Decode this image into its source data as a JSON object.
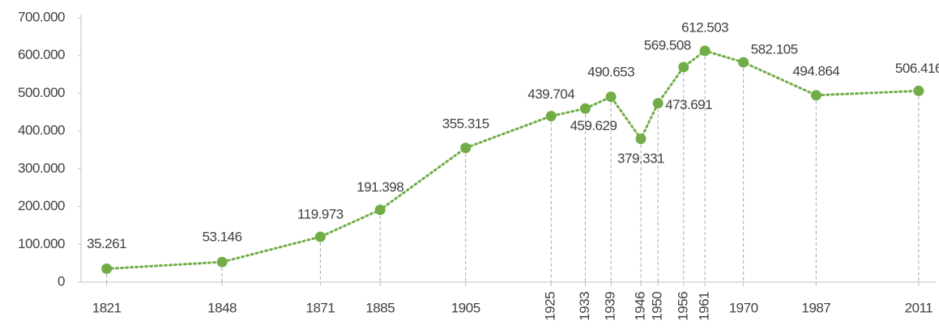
{
  "chart_data": {
    "type": "line",
    "x": [
      1821,
      1848,
      1871,
      1885,
      1905,
      1925,
      1933,
      1939,
      1946,
      1950,
      1956,
      1961,
      1970,
      1987,
      2011
    ],
    "values": [
      35261,
      53146,
      119973,
      191398,
      355315,
      439704,
      459629,
      490653,
      379331,
      473691,
      569508,
      612503,
      582105,
      494864,
      506416
    ],
    "value_labels": [
      "35.261",
      "53.146",
      "119.973",
      "191.398",
      "355.315",
      "439.704",
      "459.629",
      "490.653",
      "379.331",
      "473.691",
      "569.508",
      "612.503",
      "582.105",
      "494.864",
      "506.416"
    ],
    "color": "#70ad47",
    "xlim": [
      1815,
      2015
    ],
    "xticks": [
      1821,
      1848,
      1871,
      1885,
      1905,
      1925,
      1933,
      1939,
      1946,
      1950,
      1956,
      1961,
      1970,
      1987,
      2011
    ],
    "ylim": [
      0,
      700000
    ],
    "yticks": [
      0,
      {
        "value": 100000,
        "label": "100.000"
      },
      {
        "value": 200000,
        "label": "200.000"
      },
      {
        "value": 300000,
        "label": "300.000"
      },
      {
        "value": 400000,
        "label": "400.000"
      },
      {
        "value": 500000,
        "label": "500.000"
      },
      {
        "value": 600000,
        "label": "600.000"
      },
      {
        "value": 700000,
        "label": "700.000"
      }
    ],
    "grid": false
  }
}
